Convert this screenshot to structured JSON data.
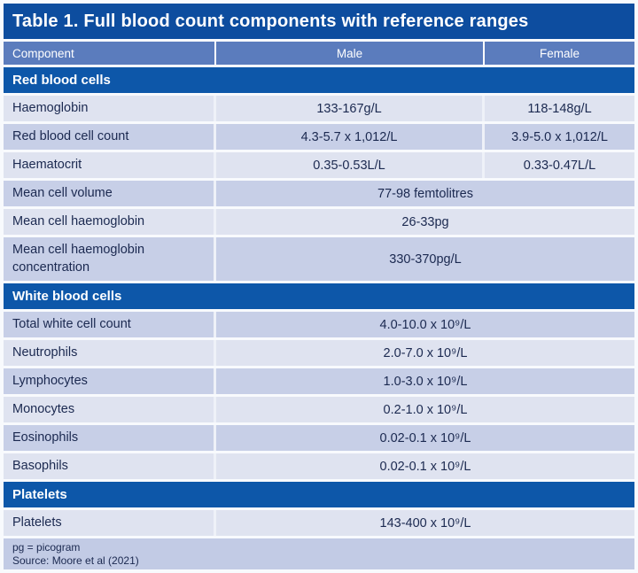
{
  "title": "Table 1. Full blood count components with reference ranges",
  "columns": {
    "component": "Component",
    "male": "Male",
    "female": "Female"
  },
  "sections": [
    {
      "header": "Red blood cells",
      "rows": [
        {
          "component": "Haemoglobin",
          "male": "133-167g/L",
          "female": "118-148g/L",
          "span": false,
          "alt": false
        },
        {
          "component": "Red blood cell count",
          "male": "4.3-5.7 x 1,012/L",
          "female": "3.9-5.0 x 1,012/L",
          "span": false,
          "alt": true
        },
        {
          "component": "Haematocrit",
          "male": "0.35-0.53L/L",
          "female": "0.33-0.47L/L",
          "span": false,
          "alt": false
        },
        {
          "component": "Mean cell volume",
          "value": "77-98 femtolitres",
          "span": true,
          "alt": true
        },
        {
          "component": "Mean cell haemoglobin",
          "value": "26-33pg",
          "span": true,
          "alt": false
        },
        {
          "component": "Mean cell haemoglobin concentration",
          "value": "330-370pg/L",
          "span": true,
          "alt": true,
          "tall": true
        }
      ]
    },
    {
      "header": "White blood cells",
      "rows": [
        {
          "component": "Total white cell count",
          "value": "4.0-10.0 x 10⁹/L",
          "span": true,
          "alt": true
        },
        {
          "component": "Neutrophils",
          "value": "2.0-7.0 x 10⁹/L",
          "span": true,
          "alt": false
        },
        {
          "component": "Lymphocytes",
          "value": "1.0-3.0 x 10⁹/L",
          "span": true,
          "alt": true
        },
        {
          "component": "Monocytes",
          "value": "0.2-1.0 x 10⁹/L",
          "span": true,
          "alt": false
        },
        {
          "component": "Eosinophils",
          "value": "0.02-0.1 x 10⁹/L",
          "span": true,
          "alt": true
        },
        {
          "component": "Basophils",
          "value": "0.02-0.1 x 10⁹/L",
          "span": true,
          "alt": false
        }
      ]
    },
    {
      "header": "Platelets",
      "rows": [
        {
          "component": "Platelets",
          "value": "143-400 x 10⁹/L",
          "span": true,
          "alt": false
        }
      ]
    }
  ],
  "footnotes": [
    "pg = picogram",
    "Source: Moore et al (2021)"
  ],
  "colors": {
    "title_bar": "#0d4d9f",
    "section_header": "#0d57a9",
    "column_header": "#5b7cbd",
    "row_light": "#dfe3f0",
    "row_dark": "#c7cfe7",
    "footer": "#c2cbe5",
    "text": "#1b2950"
  }
}
